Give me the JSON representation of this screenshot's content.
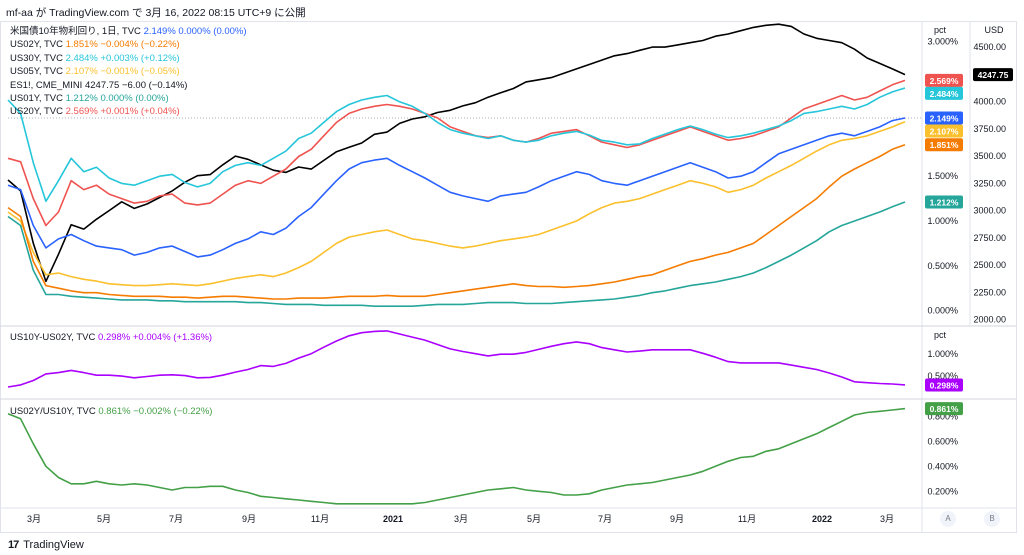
{
  "header": {
    "text": "mf-aa が TradingView.com で 3月 16, 2022 08:15 UTC+9 に公開"
  },
  "footer": {
    "logo": "17",
    "brand": "TradingView"
  },
  "buttons": {
    "a": "A",
    "b": "B"
  },
  "colors": {
    "us10y": "#2962ff",
    "us02y": "#f57c00",
    "us30y": "#26c6da",
    "us05y": "#fbc02d",
    "es": "#000000",
    "us01y": "#26a69a",
    "us20y": "#ef5350",
    "spread": "#aa00ff",
    "ratio": "#43a047"
  },
  "legend_main": [
    {
      "name": "米国債10年物利回り, 1日, TVC",
      "value": "2.149%  0.000% (0.00%)",
      "color": "#2962ff"
    },
    {
      "name": "US02Y, TVC",
      "value": "1.851%  −0.004% (−0.22%)",
      "color": "#f57c00"
    },
    {
      "name": "US30Y, TVC",
      "value": "2.484%  +0.003% (+0.12%)",
      "color": "#26c6da"
    },
    {
      "name": "US05Y, TVC",
      "value": "2.107%  −0.001% (−0.05%)",
      "color": "#fbc02d"
    },
    {
      "name": "ES1!, CME_MINI",
      "value": "4247.75  −6.00 (−0.14%)",
      "color": "#131722"
    },
    {
      "name": "US01Y, TVC",
      "value": "1.212%  0.000% (0.00%)",
      "color": "#26a69a"
    },
    {
      "name": "US20Y, TVC",
      "value": "2.569%  +0.001% (+0.04%)",
      "color": "#ef5350"
    }
  ],
  "legend_spread": {
    "name": "US10Y-US02Y, TVC",
    "value": "0.298%  +0.004% (+1.36%)",
    "color": "#aa00ff"
  },
  "legend_ratio": {
    "name": "US02Y/US10Y, TVC",
    "value": "0.861%  −0.002% (−0.22%)",
    "color": "#43a047"
  },
  "chart_data": [
    {
      "type": "line",
      "panel": "main",
      "x_ticks": [
        "3月",
        "5月",
        "7月",
        "9月",
        "11月",
        "2021",
        "3月",
        "5月",
        "7月",
        "9月",
        "11月",
        "2022",
        "3月"
      ],
      "y_left_label": "pct",
      "y_left_ticks": [
        "3.000%",
        "2.500%",
        "2.000%",
        "1.500%",
        "1.000%",
        "0.500%",
        "0.000%"
      ],
      "y_left_range": [
        -0.16,
        3.22
      ],
      "y_right_label": "USD",
      "y_right_ticks": [
        "4500.00",
        "4250.00",
        "4000.00",
        "3750.00",
        "3500.00",
        "3250.00",
        "3000.00",
        "2750.00",
        "2500.00",
        "2250.00",
        "2000.00"
      ],
      "y_right_range": [
        1950,
        4730
      ],
      "series": [
        {
          "name": "ES1!",
          "axis": "right",
          "color": "#000000",
          "last_label": "4247.75",
          "values": [
            3280,
            3180,
            2700,
            2350,
            2600,
            2870,
            2830,
            2920,
            3000,
            3080,
            3020,
            3060,
            3120,
            3180,
            3260,
            3320,
            3330,
            3420,
            3500,
            3470,
            3420,
            3370,
            3350,
            3400,
            3380,
            3460,
            3540,
            3580,
            3620,
            3700,
            3720,
            3800,
            3840,
            3860,
            3900,
            3920,
            3960,
            3990,
            4040,
            4080,
            4120,
            4180,
            4200,
            4220,
            4260,
            4300,
            4340,
            4380,
            4420,
            4440,
            4470,
            4500,
            4500,
            4520,
            4540,
            4560,
            4600,
            4620,
            4650,
            4680,
            4700,
            4710,
            4690,
            4620,
            4580,
            4560,
            4540,
            4480,
            4400,
            4350,
            4300,
            4247
          ]
        },
        {
          "name": "US20Y",
          "axis": "left",
          "color": "#ef5350",
          "last_label": "2.569%",
          "values": [
            1.7,
            1.66,
            1.25,
            0.95,
            1.1,
            1.45,
            1.35,
            1.4,
            1.3,
            1.25,
            1.2,
            1.22,
            1.28,
            1.3,
            1.2,
            1.18,
            1.2,
            1.3,
            1.4,
            1.45,
            1.42,
            1.5,
            1.58,
            1.72,
            1.8,
            1.95,
            2.1,
            2.2,
            2.25,
            2.28,
            2.3,
            2.28,
            2.25,
            2.2,
            2.15,
            2.05,
            2.0,
            1.95,
            1.93,
            1.95,
            1.9,
            1.88,
            1.92,
            1.98,
            2.0,
            2.02,
            1.95,
            1.88,
            1.85,
            1.82,
            1.85,
            1.9,
            1.95,
            2.0,
            2.05,
            2.0,
            1.95,
            1.9,
            1.92,
            1.95,
            2.0,
            2.05,
            2.15,
            2.25,
            2.3,
            2.35,
            2.4,
            2.35,
            2.38,
            2.45,
            2.52,
            2.569
          ]
        },
        {
          "name": "US30Y",
          "axis": "left",
          "color": "#26c6da",
          "last_label": "2.484%",
          "values": [
            2.35,
            2.2,
            1.65,
            1.22,
            1.45,
            1.7,
            1.55,
            1.6,
            1.48,
            1.42,
            1.4,
            1.45,
            1.5,
            1.52,
            1.43,
            1.38,
            1.42,
            1.55,
            1.62,
            1.65,
            1.62,
            1.7,
            1.78,
            1.92,
            1.98,
            2.1,
            2.22,
            2.3,
            2.35,
            2.38,
            2.4,
            2.33,
            2.28,
            2.2,
            2.1,
            2.02,
            1.98,
            1.95,
            1.92,
            1.95,
            1.9,
            1.88,
            1.9,
            1.95,
            1.98,
            2.0,
            1.96,
            1.9,
            1.88,
            1.85,
            1.86,
            1.92,
            1.97,
            2.02,
            2.06,
            2.02,
            1.97,
            1.93,
            1.95,
            1.98,
            2.02,
            2.06,
            2.12,
            2.2,
            2.22,
            2.25,
            2.28,
            2.25,
            2.3,
            2.38,
            2.44,
            2.484
          ]
        },
        {
          "name": "US10Y",
          "axis": "left",
          "color": "#2962ff",
          "last_label": "2.149%",
          "values": [
            1.4,
            1.35,
            0.95,
            0.7,
            0.8,
            0.85,
            0.78,
            0.72,
            0.7,
            0.68,
            0.62,
            0.65,
            0.7,
            0.72,
            0.66,
            0.6,
            0.62,
            0.68,
            0.75,
            0.8,
            0.88,
            0.85,
            0.92,
            1.05,
            1.15,
            1.3,
            1.45,
            1.58,
            1.65,
            1.68,
            1.7,
            1.62,
            1.55,
            1.48,
            1.4,
            1.32,
            1.28,
            1.25,
            1.22,
            1.28,
            1.3,
            1.32,
            1.38,
            1.45,
            1.5,
            1.55,
            1.52,
            1.45,
            1.42,
            1.4,
            1.45,
            1.5,
            1.55,
            1.6,
            1.65,
            1.6,
            1.55,
            1.48,
            1.5,
            1.55,
            1.65,
            1.75,
            1.8,
            1.85,
            1.9,
            1.95,
            1.98,
            1.95,
            2.0,
            2.05,
            2.12,
            2.149
          ]
        },
        {
          "name": "US05Y",
          "axis": "left",
          "color": "#fbc02d",
          "last_label": "2.107%",
          "values": [
            1.1,
            1.0,
            0.65,
            0.4,
            0.42,
            0.38,
            0.35,
            0.33,
            0.3,
            0.29,
            0.28,
            0.28,
            0.29,
            0.3,
            0.29,
            0.28,
            0.3,
            0.33,
            0.36,
            0.38,
            0.4,
            0.38,
            0.42,
            0.48,
            0.55,
            0.65,
            0.75,
            0.82,
            0.85,
            0.88,
            0.9,
            0.85,
            0.8,
            0.78,
            0.75,
            0.72,
            0.7,
            0.72,
            0.75,
            0.78,
            0.8,
            0.82,
            0.85,
            0.9,
            0.95,
            1.0,
            1.08,
            1.15,
            1.2,
            1.22,
            1.25,
            1.3,
            1.35,
            1.4,
            1.45,
            1.42,
            1.38,
            1.32,
            1.35,
            1.4,
            1.48,
            1.55,
            1.62,
            1.7,
            1.78,
            1.85,
            1.9,
            1.92,
            1.95,
            2.0,
            2.05,
            2.107
          ]
        },
        {
          "name": "US02Y",
          "axis": "left",
          "color": "#f57c00",
          "last_label": "1.851%",
          "values": [
            1.15,
            1.05,
            0.55,
            0.28,
            0.25,
            0.22,
            0.2,
            0.2,
            0.18,
            0.17,
            0.16,
            0.16,
            0.16,
            0.15,
            0.15,
            0.14,
            0.15,
            0.16,
            0.16,
            0.15,
            0.14,
            0.13,
            0.13,
            0.14,
            0.14,
            0.14,
            0.15,
            0.16,
            0.16,
            0.16,
            0.17,
            0.16,
            0.16,
            0.16,
            0.18,
            0.2,
            0.22,
            0.24,
            0.26,
            0.28,
            0.3,
            0.28,
            0.27,
            0.27,
            0.26,
            0.27,
            0.28,
            0.3,
            0.32,
            0.35,
            0.38,
            0.4,
            0.45,
            0.5,
            0.55,
            0.58,
            0.62,
            0.65,
            0.7,
            0.75,
            0.85,
            0.95,
            1.05,
            1.15,
            1.25,
            1.38,
            1.5,
            1.58,
            1.65,
            1.72,
            1.8,
            1.851
          ]
        },
        {
          "name": "US01Y",
          "axis": "left",
          "color": "#26a69a",
          "last_label": "1.212%",
          "values": [
            1.05,
            0.95,
            0.45,
            0.18,
            0.18,
            0.16,
            0.15,
            0.14,
            0.13,
            0.12,
            0.12,
            0.12,
            0.11,
            0.11,
            0.1,
            0.1,
            0.1,
            0.1,
            0.1,
            0.09,
            0.09,
            0.08,
            0.07,
            0.07,
            0.07,
            0.06,
            0.06,
            0.06,
            0.06,
            0.05,
            0.05,
            0.05,
            0.05,
            0.06,
            0.07,
            0.07,
            0.07,
            0.08,
            0.09,
            0.09,
            0.09,
            0.08,
            0.08,
            0.08,
            0.09,
            0.1,
            0.11,
            0.12,
            0.13,
            0.15,
            0.17,
            0.2,
            0.22,
            0.25,
            0.28,
            0.3,
            0.32,
            0.35,
            0.38,
            0.42,
            0.48,
            0.55,
            0.62,
            0.7,
            0.78,
            0.88,
            0.95,
            1.0,
            1.05,
            1.1,
            1.16,
            1.212
          ]
        }
      ]
    },
    {
      "type": "line",
      "panel": "spread",
      "y_label": "pct",
      "y_ticks": [
        "1.000%",
        "0.500%"
      ],
      "y_range": [
        0.0,
        1.62
      ],
      "series": [
        {
          "name": "US10Y-US02Y",
          "color": "#aa00ff",
          "last_label": "0.298%",
          "values": [
            0.25,
            0.3,
            0.4,
            0.55,
            0.58,
            0.63,
            0.58,
            0.52,
            0.52,
            0.5,
            0.46,
            0.49,
            0.52,
            0.53,
            0.51,
            0.46,
            0.47,
            0.52,
            0.59,
            0.65,
            0.74,
            0.72,
            0.79,
            0.91,
            1.01,
            1.16,
            1.3,
            1.42,
            1.49,
            1.52,
            1.53,
            1.46,
            1.39,
            1.32,
            1.22,
            1.12,
            1.06,
            1.01,
            0.96,
            1.0,
            1.0,
            1.04,
            1.11,
            1.18,
            1.24,
            1.28,
            1.24,
            1.15,
            1.1,
            1.05,
            1.07,
            1.1,
            1.1,
            1.1,
            1.1,
            1.02,
            0.93,
            0.83,
            0.8,
            0.8,
            0.8,
            0.8,
            0.75,
            0.7,
            0.65,
            0.57,
            0.48,
            0.37,
            0.35,
            0.33,
            0.32,
            0.298
          ]
        }
      ]
    },
    {
      "type": "line",
      "panel": "ratio",
      "y_label": "",
      "y_ticks": [
        "0.800%",
        "0.600%",
        "0.400%",
        "0.200%"
      ],
      "y_range": [
        0.09,
        0.93
      ],
      "x_ticks": [
        "3月",
        "5月",
        "7月",
        "9月",
        "11月",
        "2021",
        "3月",
        "5月",
        "7月",
        "9月",
        "11月",
        "2022",
        "3月"
      ],
      "series": [
        {
          "name": "US02Y/US10Y",
          "color": "#43a047",
          "last_label": "0.861%",
          "values": [
            0.82,
            0.78,
            0.58,
            0.4,
            0.31,
            0.26,
            0.26,
            0.28,
            0.26,
            0.25,
            0.26,
            0.25,
            0.23,
            0.21,
            0.23,
            0.23,
            0.24,
            0.24,
            0.21,
            0.19,
            0.16,
            0.15,
            0.14,
            0.13,
            0.12,
            0.11,
            0.1,
            0.1,
            0.1,
            0.1,
            0.1,
            0.1,
            0.1,
            0.11,
            0.13,
            0.15,
            0.17,
            0.19,
            0.21,
            0.22,
            0.23,
            0.21,
            0.2,
            0.19,
            0.17,
            0.17,
            0.18,
            0.21,
            0.23,
            0.25,
            0.26,
            0.27,
            0.29,
            0.31,
            0.33,
            0.36,
            0.4,
            0.44,
            0.47,
            0.48,
            0.52,
            0.54,
            0.58,
            0.62,
            0.66,
            0.71,
            0.76,
            0.81,
            0.83,
            0.84,
            0.85,
            0.861
          ]
        }
      ]
    }
  ]
}
